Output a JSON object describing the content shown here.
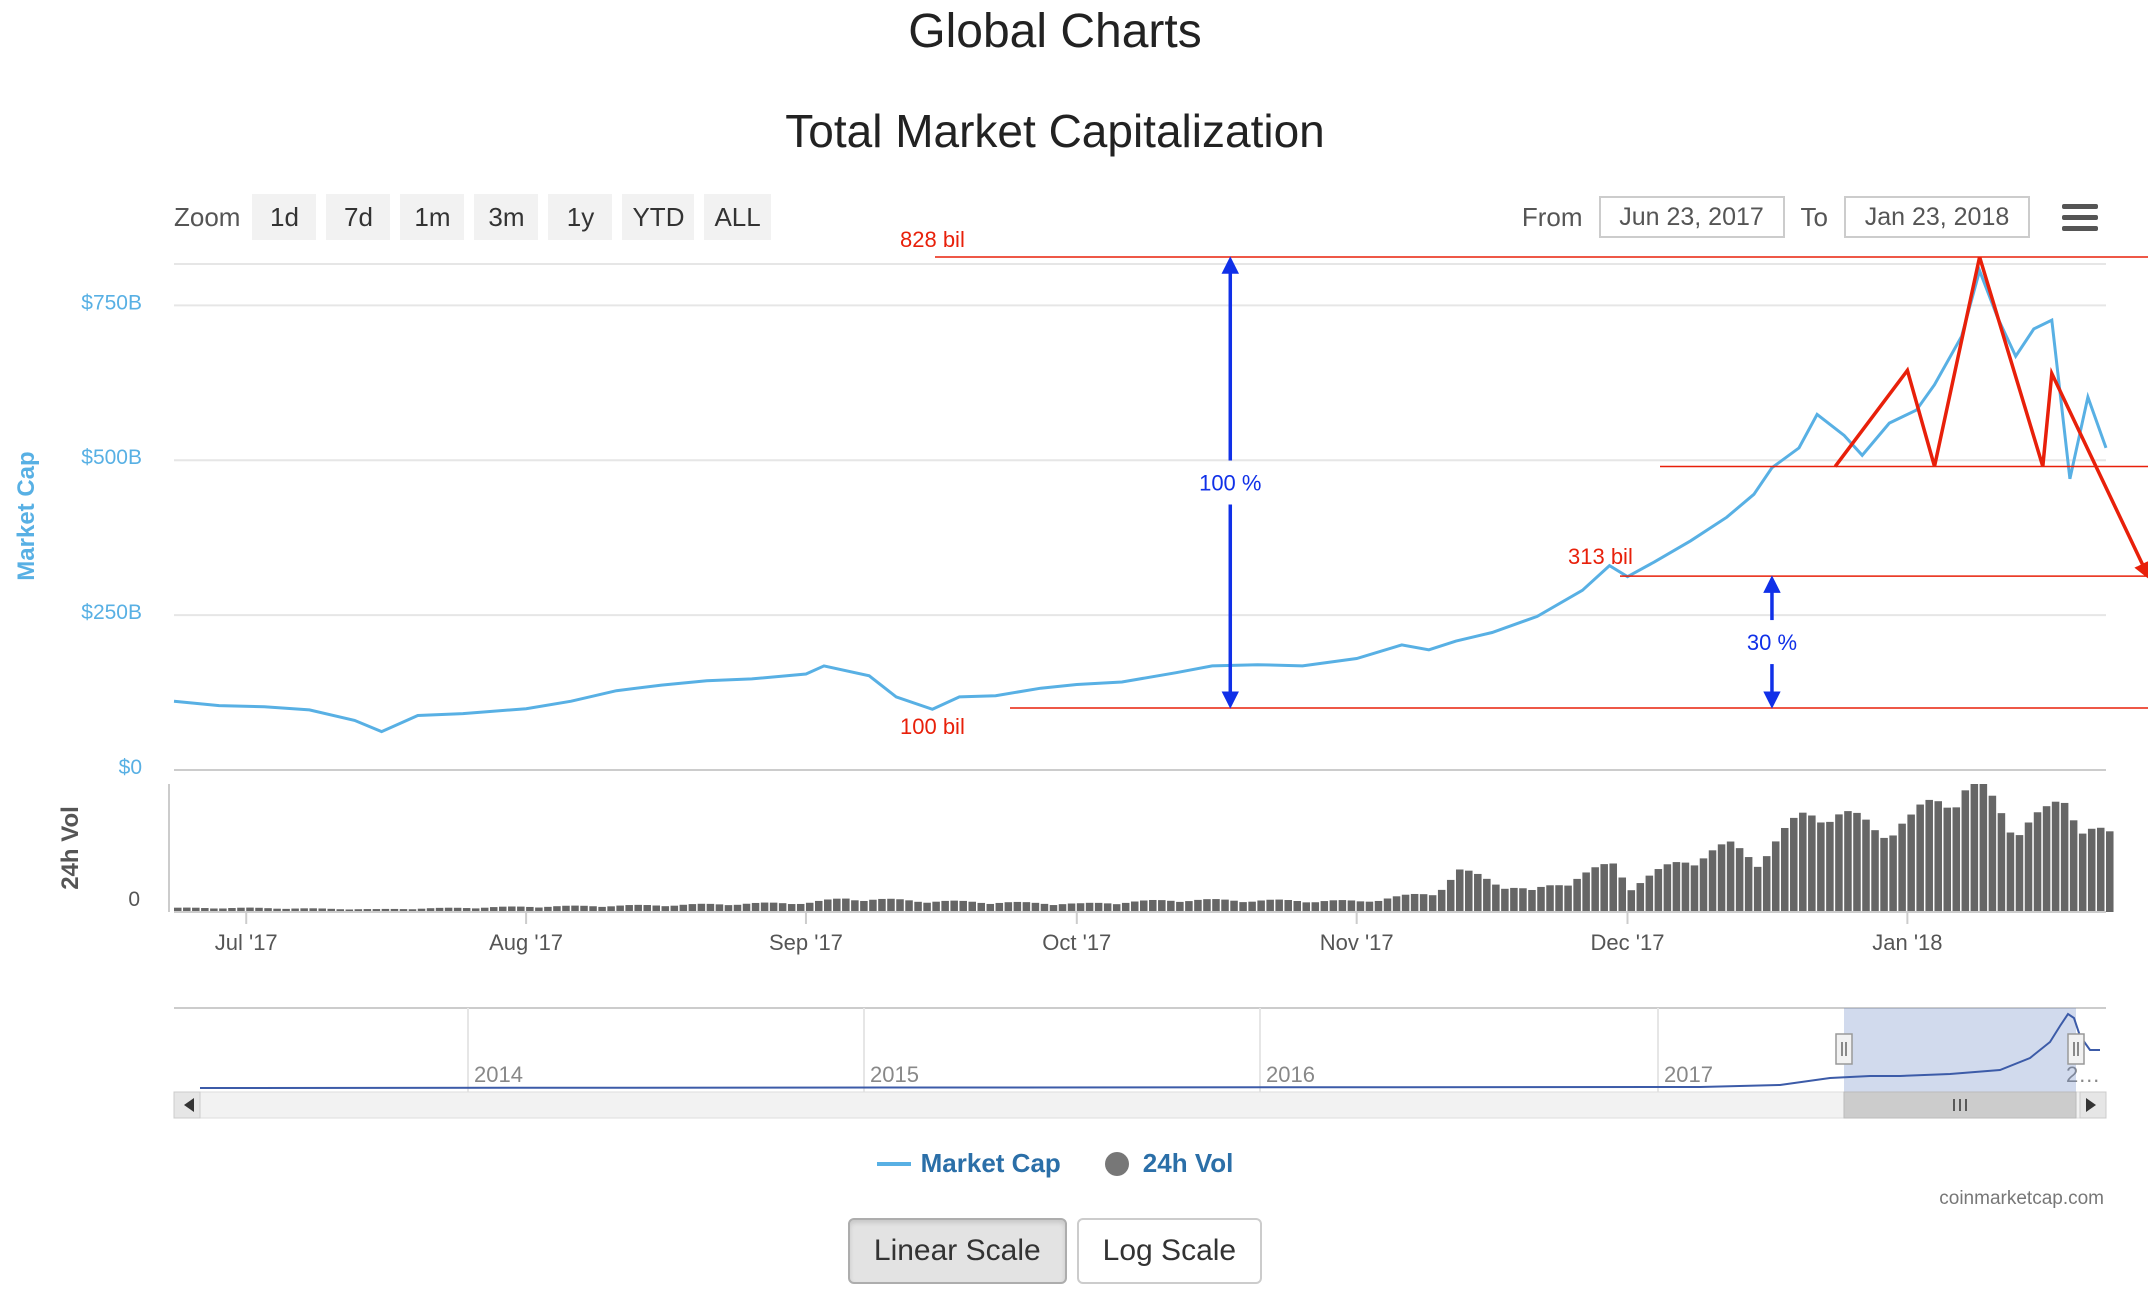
{
  "page": {
    "title": "Global Charts"
  },
  "toolbar": {
    "zoom_label": "Zoom",
    "zoom_buttons": [
      "1d",
      "7d",
      "1m",
      "3m",
      "1y",
      "YTD",
      "ALL"
    ],
    "from_label": "From",
    "from_value": "Jun 23, 2017",
    "to_label": "To",
    "to_value": "Jan 23, 2018",
    "menu_icon": "hamburger-menu-icon"
  },
  "legend": {
    "market_cap": "Market Cap",
    "volume": "24h Vol"
  },
  "credit": "coinmarketcap.com",
  "scale_buttons": {
    "linear": "Linear Scale",
    "log": "Log Scale",
    "active": "linear"
  },
  "colors": {
    "market_cap_line": "#58b0e4",
    "volume_bars": "#666666",
    "annotation_red": "#e8200a",
    "annotation_blue": "#1030e8",
    "axis_label_blue": "#58b0e4"
  },
  "chart_data": {
    "type": "line",
    "title": "Total Market Capitalization",
    "ylabel": "Market Cap",
    "ylabel_secondary": "24h Vol",
    "x_tick_labels": [
      "Jul '17",
      "Aug '17",
      "Sep '17",
      "Oct '17",
      "Nov '17",
      "Dec '17",
      "Jan '18"
    ],
    "x_ticks": [
      "2017-07-01",
      "2017-08-01",
      "2017-09-01",
      "2017-10-01",
      "2017-11-01",
      "2017-12-01",
      "2018-01-01"
    ],
    "xlim": [
      "2017-06-23",
      "2018-01-23"
    ],
    "y_tick_labels": [
      "$0",
      "$250B",
      "$500B",
      "$750B"
    ],
    "y_ticks": [
      0,
      250,
      500,
      750
    ],
    "ylim": [
      0,
      820
    ],
    "y_unit": "billion USD",
    "volume_tick_labels": [
      "0"
    ],
    "grid": true,
    "series": [
      {
        "name": "Market Cap",
        "kind": "line",
        "x": [
          "2017-06-23",
          "2017-06-28",
          "2017-07-03",
          "2017-07-08",
          "2017-07-13",
          "2017-07-16",
          "2017-07-20",
          "2017-07-25",
          "2017-08-01",
          "2017-08-06",
          "2017-08-11",
          "2017-08-16",
          "2017-08-21",
          "2017-08-26",
          "2017-09-01",
          "2017-09-03",
          "2017-09-08",
          "2017-09-11",
          "2017-09-15",
          "2017-09-18",
          "2017-09-22",
          "2017-09-27",
          "2017-10-01",
          "2017-10-06",
          "2017-10-12",
          "2017-10-16",
          "2017-10-21",
          "2017-10-26",
          "2017-11-01",
          "2017-11-06",
          "2017-11-09",
          "2017-11-12",
          "2017-11-16",
          "2017-11-21",
          "2017-11-26",
          "2017-11-29",
          "2017-12-01",
          "2017-12-04",
          "2017-12-08",
          "2017-12-12",
          "2017-12-15",
          "2017-12-17",
          "2017-12-20",
          "2017-12-22",
          "2017-12-25",
          "2017-12-27",
          "2017-12-30",
          "2018-01-02",
          "2018-01-04",
          "2018-01-07",
          "2018-01-09",
          "2018-01-11",
          "2018-01-13",
          "2018-01-15",
          "2018-01-17",
          "2018-01-19",
          "2018-01-21",
          "2018-01-23"
        ],
        "values": [
          111,
          104,
          102,
          97,
          80,
          62,
          88,
          91,
          99,
          111,
          128,
          137,
          144,
          147,
          155,
          168,
          152,
          118,
          98,
          118,
          120,
          132,
          138,
          142,
          157,
          168,
          170,
          168,
          180,
          202,
          194,
          208,
          222,
          248,
          290,
          330,
          312,
          336,
          370,
          408,
          445,
          488,
          520,
          574,
          540,
          508,
          560,
          581,
          622,
          700,
          806,
          730,
          668,
          712,
          726,
          470,
          602,
          520
        ]
      },
      {
        "name": "24h Vol",
        "kind": "bar",
        "x": [
          "2017-06-23",
          "2017-07-01",
          "2017-07-15",
          "2017-08-01",
          "2017-08-15",
          "2017-09-01",
          "2017-09-05",
          "2017-09-15",
          "2017-10-01",
          "2017-10-12",
          "2017-11-01",
          "2017-11-09",
          "2017-11-12",
          "2017-11-20",
          "2017-11-29",
          "2017-12-01",
          "2017-12-08",
          "2017-12-12",
          "2017-12-15",
          "2017-12-20",
          "2017-12-22",
          "2017-12-28",
          "2018-01-01",
          "2018-01-05",
          "2018-01-08",
          "2018-01-12",
          "2018-01-16",
          "2018-01-18",
          "2018-01-23"
        ],
        "values": [
          0.03,
          0.03,
          0.02,
          0.04,
          0.05,
          0.07,
          0.1,
          0.08,
          0.06,
          0.09,
          0.08,
          0.14,
          0.3,
          0.15,
          0.35,
          0.2,
          0.42,
          0.48,
          0.4,
          0.7,
          0.78,
          0.62,
          0.68,
          0.88,
          0.95,
          0.66,
          0.72,
          0.8,
          0.55
        ]
      }
    ],
    "annotations": {
      "horizontal_lines": [
        {
          "label": "828 bil",
          "value": 828
        },
        {
          "label": "313 bil",
          "value": 313
        },
        {
          "label": "100 bil",
          "value": 100
        },
        {
          "label": "",
          "value": 490
        }
      ],
      "arrows": [
        {
          "label": "100 %",
          "from": 100,
          "to": 828,
          "x": "2017-10-18"
        },
        {
          "label": "30 %",
          "from": 100,
          "to": 313,
          "x": "2017-12-17"
        }
      ],
      "zigzag": {
        "x": [
          "2017-12-24",
          "2018-01-01",
          "2018-01-04",
          "2018-01-09",
          "2018-01-16",
          "2018-01-17",
          "2018-01-23"
        ],
        "values": [
          490,
          645,
          490,
          828,
          490,
          640,
          320
        ]
      }
    },
    "navigator": {
      "labels": [
        "2014",
        "2015",
        "2016",
        "2017",
        "2…"
      ],
      "scrollbar_icon": "scrollbar-grip-icon",
      "left_arrow_icon": "scroll-left-icon",
      "right_arrow_icon": "scroll-right-icon"
    }
  }
}
